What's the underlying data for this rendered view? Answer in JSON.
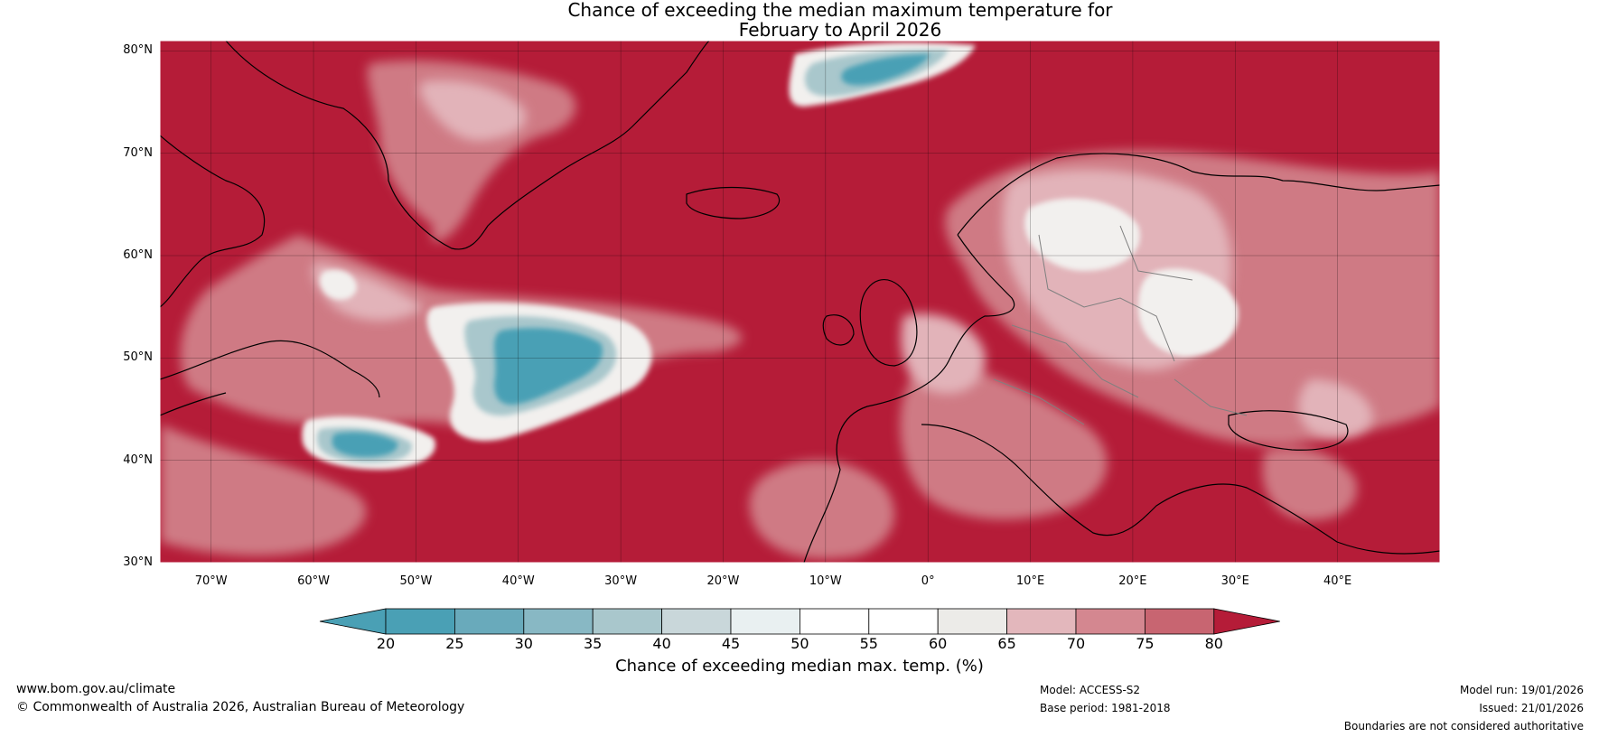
{
  "title_line1": "Chance of exceeding the median maximum temperature for",
  "title_line2": "February to April 2026",
  "lat_labels": [
    "80°N",
    "70°N",
    "60°N",
    "50°N",
    "40°N",
    "30°N"
  ],
  "lon_labels": [
    "70°W",
    "60°W",
    "50°W",
    "40°W",
    "30°W",
    "20°W",
    "10°W",
    "0°",
    "10°E",
    "20°E",
    "30°E",
    "40°E"
  ],
  "colorbar": {
    "label": "Chance of exceeding median max. temp. (%)",
    "ticks": [
      "20",
      "25",
      "30",
      "35",
      "40",
      "45",
      "50",
      "55",
      "60",
      "65",
      "70",
      "75",
      "80"
    ],
    "colors": [
      "#4aa0b5",
      "#69aabb",
      "#88b8c4",
      "#a9c7cc",
      "#c9d7da",
      "#e9f0f1",
      "#ffffff",
      "#ffffff",
      "#ecebe8",
      "#e3b7bc",
      "#d48790",
      "#c86571",
      "#bd4553"
    ],
    "under_color": "#4aa0b5",
    "over_color": "#b51c38"
  },
  "colors": {
    "ocean_high": "#b51c38",
    "mid_pink": "#cf7a84",
    "light_pink": "#e2b3b9",
    "near_white": "#f2f0ee",
    "teal": "#4aa0b5",
    "light_teal": "#a9c7cc",
    "coast": "#000000",
    "border": "#808080"
  },
  "footer": {
    "url": "www.bom.gov.au/climate",
    "copyright": "© Commonwealth of Australia 2026, Australian Bureau of Meteorology",
    "model": "Model: ACCESS-S2",
    "base_period": "Base period: 1981-2018",
    "model_run": "Model run: 19/01/2026",
    "issued": "Issued: 21/01/2026",
    "disclaimer": "Boundaries are not considered authoritative"
  }
}
